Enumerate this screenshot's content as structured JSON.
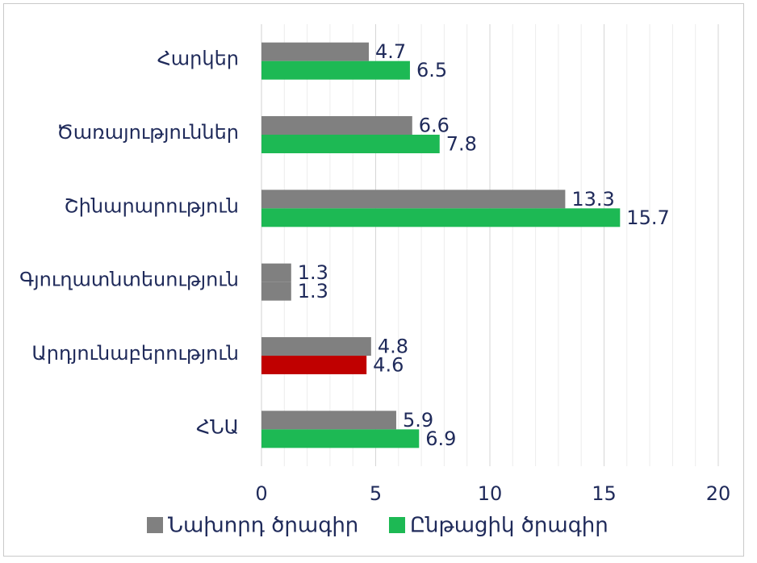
{
  "chart_data": {
    "type": "bar",
    "orientation": "horizontal",
    "categories": [
      "Հարկեր",
      "Ծառայություններ",
      "Շինարարություն",
      "Գյուղատնտեսություն",
      "Արդյունաբերություն",
      "ՀՆԱ"
    ],
    "series": [
      {
        "name": "Նախորդ ծրագիր",
        "color": "#808080",
        "values": [
          4.7,
          6.6,
          13.3,
          1.3,
          4.8,
          5.9
        ],
        "labels": [
          "4.7",
          "6.6",
          "13.3",
          "1.3",
          "4.8",
          "5.9"
        ]
      },
      {
        "name": "Ընթացիկ ծրագիր",
        "color": "#1db954",
        "values": [
          6.5,
          7.8,
          15.7,
          1.3,
          4.6,
          6.9
        ],
        "labels": [
          "6.5",
          "7.8",
          "15.7",
          "1.3",
          "4.6",
          "6.9"
        ],
        "point_colors": [
          "#1db954",
          "#1db954",
          "#1db954",
          "#808080",
          "#c00000",
          "#1db954"
        ]
      }
    ],
    "xlim": [
      0,
      20
    ],
    "ticks": [
      0,
      5,
      10,
      15,
      20
    ],
    "tick_labels": [
      "0",
      "5",
      "10",
      "15",
      "20"
    ],
    "grid": "vertical",
    "legend": "bottom",
    "title": "",
    "xlabel": "",
    "ylabel": ""
  }
}
